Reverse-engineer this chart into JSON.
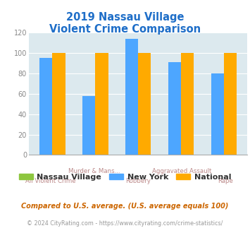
{
  "title_line1": "2019 Nassau Village",
  "title_line2": "Violent Crime Comparison",
  "title_color": "#1e6ec8",
  "categories": [
    "All Violent Crime",
    "Murder & Mans...",
    "Robbery",
    "Aggravated Assault",
    "Rape"
  ],
  "cat_top": [
    "",
    "Murder & Mans...",
    "",
    "Aggravated Assault",
    ""
  ],
  "cat_bot": [
    "All Violent Crime",
    "",
    "Robbery",
    "",
    "Rape"
  ],
  "nassau_village": [
    null,
    null,
    null,
    null,
    null
  ],
  "new_york": [
    95,
    58,
    114,
    91,
    80
  ],
  "national": [
    100,
    100,
    100,
    100,
    100
  ],
  "nassau_color": "#8dc63f",
  "newyork_color": "#4da6ff",
  "national_color": "#ffaa00",
  "ylim": [
    0,
    120
  ],
  "yticks": [
    0,
    20,
    40,
    60,
    80,
    100,
    120
  ],
  "bg_color": "#ffffff",
  "plot_bg": "#dce9ee",
  "legend_labels": [
    "Nassau Village",
    "New York",
    "National"
  ],
  "footnote1": "Compared to U.S. average. (U.S. average equals 100)",
  "footnote2": "© 2024 CityRating.com - https://www.cityrating.com/crime-statistics/",
  "footnote1_color": "#cc6600",
  "footnote2_color": "#999999",
  "footnote2_url_color": "#3366cc"
}
